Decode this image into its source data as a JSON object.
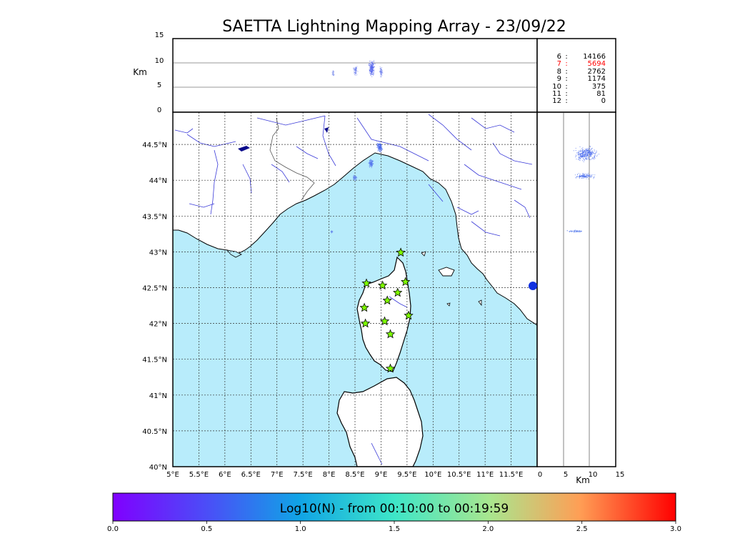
{
  "title": "SAETTA Lightning Mapping Array - 23/09/22",
  "alt_panel": {
    "unit": "Km",
    "ticks": [
      "15",
      "10",
      "5",
      "0"
    ]
  },
  "side_panel": {
    "unit": "Km",
    "ticks": [
      "0",
      "5",
      "10",
      "15"
    ]
  },
  "counts": [
    {
      "key": "6",
      "value": "14166",
      "highlight": false
    },
    {
      "key": "7",
      "value": "5694",
      "highlight": true
    },
    {
      "key": "8",
      "value": "2762",
      "highlight": false
    },
    {
      "key": "9",
      "value": "1174",
      "highlight": false
    },
    {
      "key": "10",
      "value": "375",
      "highlight": false
    },
    {
      "key": "11",
      "value": "81",
      "highlight": false
    },
    {
      "key": "12",
      "value": "0",
      "highlight": false
    }
  ],
  "map": {
    "lat_ticks": [
      "44.5°N",
      "44°N",
      "43.5°N",
      "43°N",
      "42.5°N",
      "42°N",
      "41.5°N",
      "41°N",
      "40.5°N",
      "40°N"
    ],
    "lon_ticks": [
      "5°E",
      "5.5°E",
      "6°E",
      "6.5°E",
      "7°E",
      "7.5°E",
      "8°E",
      "8.5°E",
      "9°E",
      "9.5°E",
      "10°E",
      "10.5°E",
      "11°E",
      "11.5°E"
    ],
    "lat_range": [
      40,
      44.95
    ],
    "lon_range": [
      5,
      12
    ],
    "colors": {
      "sea": "#b8ecfb",
      "land": "#ffffff",
      "rivers": "#3a3ad8",
      "coast": "#000000",
      "station": "#7fff00"
    },
    "stations": [
      [
        9.38,
        42.99
      ],
      [
        8.72,
        42.56
      ],
      [
        9.03,
        42.53
      ],
      [
        9.47,
        42.58
      ],
      [
        9.12,
        42.32
      ],
      [
        9.32,
        42.43
      ],
      [
        8.68,
        42.22
      ],
      [
        8.7,
        42.0
      ],
      [
        9.07,
        42.03
      ],
      [
        9.53,
        42.11
      ],
      [
        9.18,
        41.85
      ],
      [
        9.18,
        41.37
      ]
    ]
  },
  "colorbar": {
    "label": "Log10(N) - from 00:10:00 to 00:19:59",
    "ticks": [
      "0.0",
      "0.5",
      "1.0",
      "1.5",
      "2.0",
      "2.5",
      "3.0"
    ],
    "range": [
      0,
      3
    ]
  }
}
